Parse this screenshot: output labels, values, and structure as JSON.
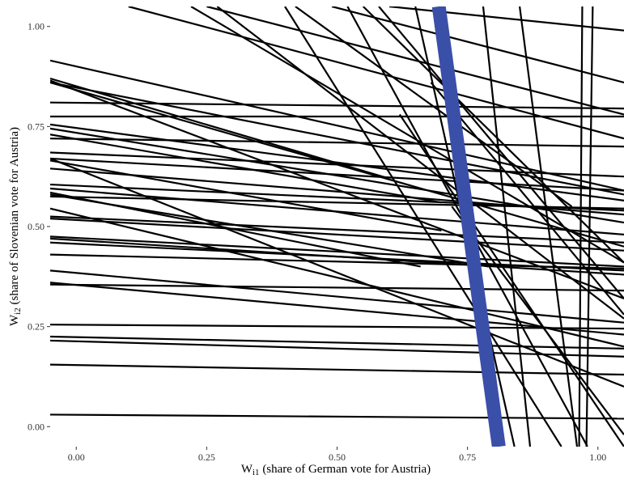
{
  "chart_data": {
    "type": "line",
    "title": "",
    "xlabel": {
      "main": "W",
      "sub": "i1",
      "rest": " (share of German vote for Austria)"
    },
    "ylabel": {
      "main": "W",
      "sub": "i2",
      "rest": " (share of Slovenian vote for Austria)"
    },
    "xlim": [
      -0.05,
      1.05
    ],
    "ylim": [
      -0.05,
      1.05
    ],
    "x_ticks": [
      0.0,
      0.25,
      0.5,
      0.75,
      1.0
    ],
    "x_tick_labels": [
      "0.00",
      "0.25",
      "0.50",
      "0.75",
      "1.00"
    ],
    "y_ticks": [
      0.0,
      0.25,
      0.5,
      0.75,
      1.0
    ],
    "y_tick_labels": [
      "0.00",
      "0.25",
      "0.50",
      "0.75",
      "1.00"
    ],
    "grid": false,
    "legend": false,
    "line_color": "#000000",
    "highlight_color": "#3a4fa8",
    "highlight_line": {
      "x0": 0.695,
      "y0": 1.05,
      "x1": 0.81,
      "y1": -0.05
    },
    "lines": [
      {
        "x0": -0.05,
        "y0": 0.03,
        "x1": 1.05,
        "y1": 0.02
      },
      {
        "x0": -0.05,
        "y0": 0.155,
        "x1": 1.05,
        "y1": 0.13
      },
      {
        "x0": -0.05,
        "y0": 0.215,
        "x1": 1.05,
        "y1": 0.175
      },
      {
        "x0": -0.05,
        "y0": 0.225,
        "x1": 1.05,
        "y1": 0.195
      },
      {
        "x0": -0.05,
        "y0": 0.255,
        "x1": 1.05,
        "y1": 0.245
      },
      {
        "x0": -0.05,
        "y0": 0.355,
        "x1": 1.05,
        "y1": 0.34
      },
      {
        "x0": -0.05,
        "y0": 0.36,
        "x1": 1.05,
        "y1": 0.23
      },
      {
        "x0": -0.05,
        "y0": 0.39,
        "x1": 1.05,
        "y1": 0.26
      },
      {
        "x0": -0.05,
        "y0": 0.43,
        "x1": 1.05,
        "y1": 0.395
      },
      {
        "x0": -0.05,
        "y0": 0.46,
        "x1": 1.05,
        "y1": 0.39
      },
      {
        "x0": -0.05,
        "y0": 0.47,
        "x1": 1.05,
        "y1": 0.38
      },
      {
        "x0": -0.05,
        "y0": 0.475,
        "x1": 1.05,
        "y1": 0.4
      },
      {
        "x0": -0.05,
        "y0": 0.52,
        "x1": 1.05,
        "y1": 0.44
      },
      {
        "x0": -0.05,
        "y0": 0.525,
        "x1": 1.05,
        "y1": 0.46
      },
      {
        "x0": -0.05,
        "y0": 0.545,
        "x1": 1.05,
        "y1": 0.2
      },
      {
        "x0": -0.05,
        "y0": 0.575,
        "x1": 1.05,
        "y1": 0.545
      },
      {
        "x0": -0.05,
        "y0": 0.595,
        "x1": 1.05,
        "y1": 0.48
      },
      {
        "x0": -0.05,
        "y0": 0.605,
        "x1": 1.05,
        "y1": 0.54
      },
      {
        "x0": -0.05,
        "y0": 0.645,
        "x1": 1.05,
        "y1": 0.53
      },
      {
        "x0": -0.05,
        "y0": 0.67,
        "x1": 1.05,
        "y1": 0.59
      },
      {
        "x0": -0.05,
        "y0": 0.685,
        "x1": 1.05,
        "y1": 0.625
      },
      {
        "x0": -0.05,
        "y0": 0.72,
        "x1": 1.05,
        "y1": 0.7
      },
      {
        "x0": -0.05,
        "y0": 0.745,
        "x1": 1.05,
        "y1": 0.51
      },
      {
        "x0": -0.05,
        "y0": 0.755,
        "x1": 1.05,
        "y1": 0.565
      },
      {
        "x0": -0.05,
        "y0": 0.775,
        "x1": 1.05,
        "y1": 0.775
      },
      {
        "x0": -0.05,
        "y0": 0.81,
        "x1": 1.05,
        "y1": 0.795
      },
      {
        "x0": -0.05,
        "y0": 0.86,
        "x1": 1.05,
        "y1": 0.58
      },
      {
        "x0": -0.05,
        "y0": 0.865,
        "x1": 1.05,
        "y1": 0.32
      },
      {
        "x0": -0.05,
        "y0": 0.915,
        "x1": 1.05,
        "y1": 0.59
      },
      {
        "x0": -0.05,
        "y0": 0.67,
        "x1": 1.05,
        "y1": 0.1
      },
      {
        "x0": -0.05,
        "y0": 0.86,
        "x1": 1.05,
        "y1": 0.45
      },
      {
        "x0": -0.05,
        "y0": 0.58,
        "x1": 0.79,
        "y1": 0.4
      },
      {
        "x0": -0.05,
        "y0": 0.585,
        "x1": 0.66,
        "y1": 0.4
      },
      {
        "x0": -0.05,
        "y0": 0.665,
        "x1": 0.7,
        "y1": 0.49
      },
      {
        "x0": -0.05,
        "y0": 0.73,
        "x1": 0.7,
        "y1": 0.56
      },
      {
        "x0": -0.05,
        "y0": 0.87,
        "x1": 0.6,
        "y1": 0.62
      },
      {
        "x0": 0.1,
        "y0": 1.05,
        "x1": 1.05,
        "y1": 0.72
      },
      {
        "x0": 0.25,
        "y0": 1.05,
        "x1": 1.05,
        "y1": 0.78
      },
      {
        "x0": 0.22,
        "y0": 1.05,
        "x1": 1.05,
        "y1": 0.41
      },
      {
        "x0": 0.49,
        "y0": 1.05,
        "x1": 1.05,
        "y1": 0.86
      },
      {
        "x0": 0.6,
        "y0": 1.05,
        "x1": 1.05,
        "y1": 0.99
      },
      {
        "x0": 0.42,
        "y0": 1.05,
        "x1": 0.95,
        "y1": 0.55
      },
      {
        "x0": 0.27,
        "y0": 1.05,
        "x1": 1.05,
        "y1": 0.27
      },
      {
        "x0": 0.55,
        "y0": 1.05,
        "x1": 1.05,
        "y1": 0.41
      },
      {
        "x0": 0.52,
        "y0": 1.05,
        "x1": 0.98,
        "y1": -0.05
      },
      {
        "x0": 0.65,
        "y0": 1.05,
        "x1": 0.84,
        "y1": -0.05
      },
      {
        "x0": 0.78,
        "y0": 1.05,
        "x1": 0.87,
        "y1": -0.05
      },
      {
        "x0": 0.85,
        "y0": 1.05,
        "x1": 0.96,
        "y1": -0.05
      },
      {
        "x0": 0.58,
        "y0": 1.05,
        "x1": 1.05,
        "y1": 0.32
      },
      {
        "x0": 0.62,
        "y0": 0.78,
        "x1": 1.05,
        "y1": -0.05
      },
      {
        "x0": 0.68,
        "y0": 0.86,
        "x1": 1.05,
        "y1": 0.28
      },
      {
        "x0": 0.97,
        "y0": 1.05,
        "x1": 0.964,
        "y1": -0.05
      },
      {
        "x0": 0.99,
        "y0": 1.05,
        "x1": 0.978,
        "y1": -0.05
      },
      {
        "x0": 0.4,
        "y0": 1.05,
        "x1": 0.93,
        "y1": -0.05
      },
      {
        "x0": 0.72,
        "y0": 0.55,
        "x1": 1.05,
        "y1": -0.02
      }
    ]
  }
}
